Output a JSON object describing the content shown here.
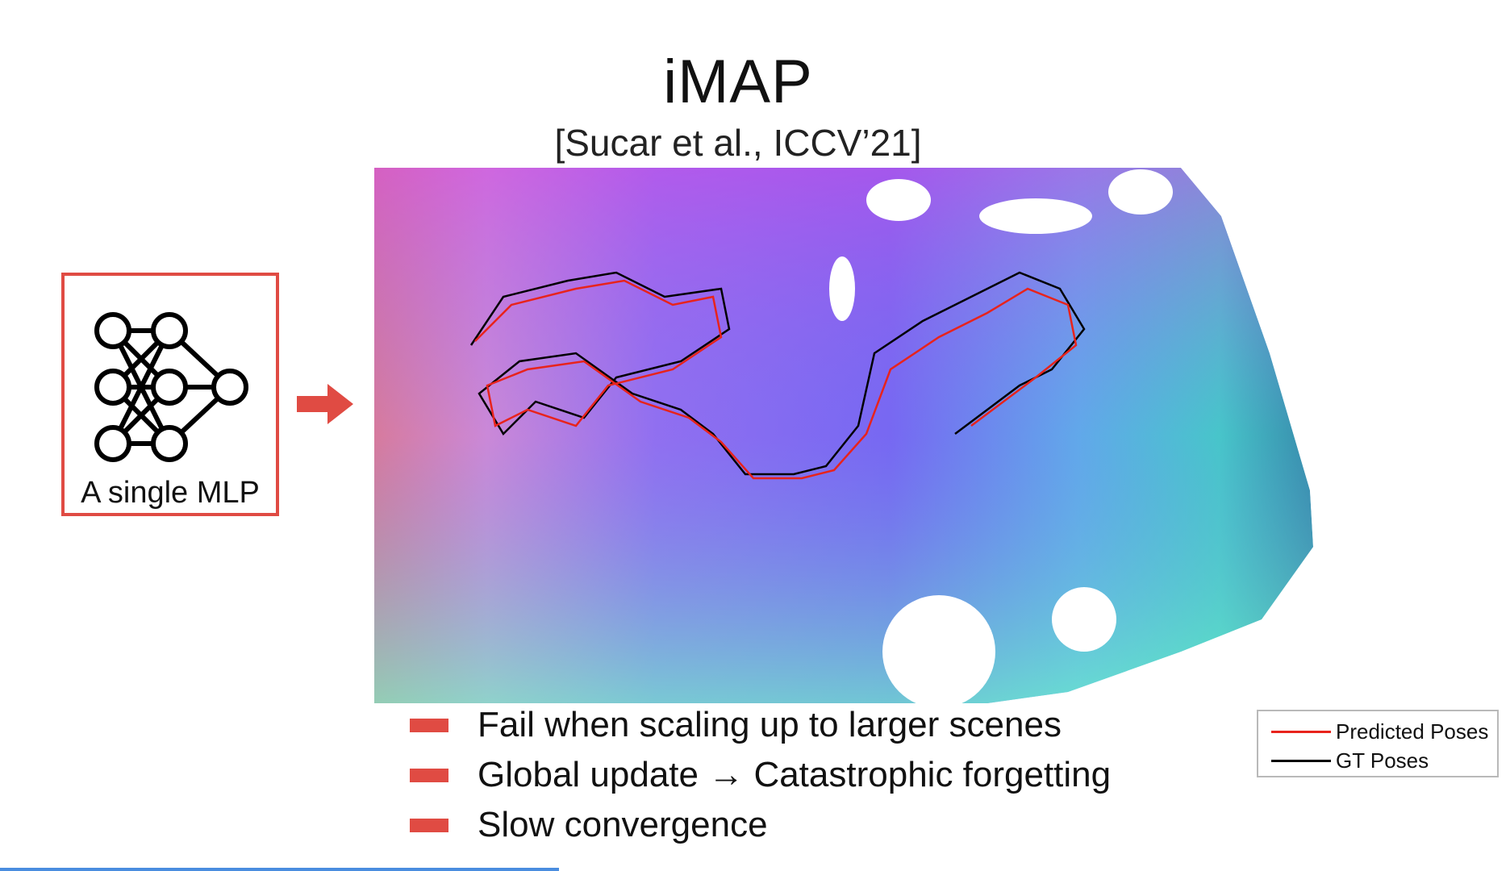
{
  "slide": {
    "title": "iMAP",
    "citation": "[Sucar et al., ICCV’21]"
  },
  "mlp_box": {
    "label": "A single MLP",
    "icon": "neural-network-icon",
    "border_color": "#e04b43"
  },
  "arrow": {
    "icon": "right-arrow-icon",
    "color": "#e04b43"
  },
  "scene_image": {
    "description_icon": "normal-map-reconstruction"
  },
  "bullets": [
    "Fail when scaling up to larger scenes",
    "Global update → Catastrophic forgetting",
    "Slow convergence"
  ],
  "legend": {
    "items": [
      {
        "label": "Predicted Poses",
        "color": "#e8231c"
      },
      {
        "label": "GT Poses",
        "color": "#000000"
      }
    ]
  },
  "video_progress": {
    "fraction": 0.37,
    "color": "#4a8ddf"
  }
}
